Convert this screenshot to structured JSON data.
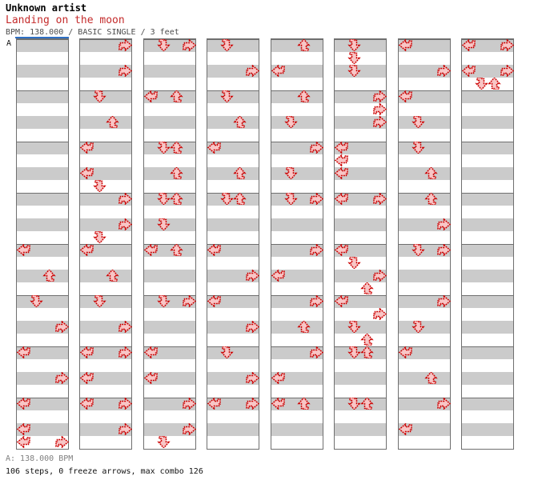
{
  "header": {
    "artist": "Unknown artist",
    "title": "Landing on the moon",
    "meta": "BPM: 138.000 / BASIC SINGLE / 3 feet"
  },
  "marker": {
    "label": "A",
    "line_color": "#2e6fc4"
  },
  "footer": {
    "bpm_line": "A: 138.000 BPM",
    "stats_line": "106 steps, 0 freeze arrows, max combo 126"
  },
  "colors": {
    "arrow_fill": "#f8c6c6",
    "arrow_stroke": "#cc0000",
    "stripe_gray": "#cbcbcb",
    "grid_border": "#6f6f6f",
    "title_red": "#c42b2b"
  },
  "chart_data": {
    "type": "step_chart",
    "game": "dance-single",
    "bpm": 138.0,
    "difficulty": "BASIC SINGLE",
    "feet": 3,
    "steps": 106,
    "freeze_arrows": 0,
    "max_combo": 126,
    "lanes": [
      "left",
      "down",
      "up",
      "right"
    ],
    "beats_per_column": 32,
    "beats_per_measure": 4,
    "columns": [
      {
        "notes": [
          [
            16,
            "left"
          ],
          [
            18,
            "up"
          ],
          [
            20,
            "down"
          ],
          [
            22,
            "right"
          ],
          [
            24,
            "left"
          ],
          [
            26,
            "right"
          ],
          [
            28,
            "left"
          ],
          [
            30,
            "left"
          ],
          [
            31,
            "left"
          ],
          [
            31,
            "right"
          ]
        ]
      },
      {
        "notes": [
          [
            0,
            "right"
          ],
          [
            2,
            "right"
          ],
          [
            4,
            "down"
          ],
          [
            6,
            "up"
          ],
          [
            8,
            "left"
          ],
          [
            10,
            "left"
          ],
          [
            11,
            "down"
          ],
          [
            12,
            "right"
          ],
          [
            14,
            "right"
          ],
          [
            15,
            "down"
          ],
          [
            16,
            "left"
          ],
          [
            18,
            "up"
          ],
          [
            20,
            "down"
          ],
          [
            22,
            "right"
          ],
          [
            24,
            "left"
          ],
          [
            24,
            "right"
          ],
          [
            26,
            "left"
          ],
          [
            28,
            "left"
          ],
          [
            28,
            "right"
          ],
          [
            30,
            "right"
          ]
        ]
      },
      {
        "notes": [
          [
            0,
            "down"
          ],
          [
            0,
            "right"
          ],
          [
            4,
            "left"
          ],
          [
            4,
            "up"
          ],
          [
            8,
            "down"
          ],
          [
            8,
            "up"
          ],
          [
            10,
            "up"
          ],
          [
            12,
            "down"
          ],
          [
            12,
            "up"
          ],
          [
            14,
            "down"
          ],
          [
            16,
            "left"
          ],
          [
            16,
            "up"
          ],
          [
            20,
            "down"
          ],
          [
            20,
            "right"
          ],
          [
            24,
            "left"
          ],
          [
            26,
            "left"
          ],
          [
            28,
            "right"
          ],
          [
            30,
            "right"
          ],
          [
            31,
            "down"
          ]
        ]
      },
      {
        "notes": [
          [
            0,
            "down"
          ],
          [
            2,
            "right"
          ],
          [
            4,
            "down"
          ],
          [
            6,
            "up"
          ],
          [
            8,
            "left"
          ],
          [
            10,
            "up"
          ],
          [
            12,
            "down"
          ],
          [
            12,
            "up"
          ],
          [
            16,
            "left"
          ],
          [
            18,
            "right"
          ],
          [
            20,
            "left"
          ],
          [
            22,
            "right"
          ],
          [
            24,
            "down"
          ],
          [
            26,
            "right"
          ],
          [
            28,
            "left"
          ],
          [
            28,
            "right"
          ]
        ]
      },
      {
        "notes": [
          [
            0,
            "up"
          ],
          [
            2,
            "left"
          ],
          [
            4,
            "up"
          ],
          [
            6,
            "down"
          ],
          [
            8,
            "right"
          ],
          [
            10,
            "down"
          ],
          [
            12,
            "down"
          ],
          [
            12,
            "right"
          ],
          [
            16,
            "right"
          ],
          [
            18,
            "left"
          ],
          [
            20,
            "right"
          ],
          [
            22,
            "up"
          ],
          [
            24,
            "right"
          ],
          [
            26,
            "left"
          ],
          [
            28,
            "left"
          ],
          [
            28,
            "up"
          ]
        ]
      },
      {
        "notes": [
          [
            0,
            "down"
          ],
          [
            1,
            "down"
          ],
          [
            2,
            "down"
          ],
          [
            4,
            "right"
          ],
          [
            5,
            "right"
          ],
          [
            6,
            "right"
          ],
          [
            8,
            "left"
          ],
          [
            9,
            "left"
          ],
          [
            10,
            "left"
          ],
          [
            12,
            "left"
          ],
          [
            12,
            "right"
          ],
          [
            16,
            "left"
          ],
          [
            17,
            "down"
          ],
          [
            18,
            "right"
          ],
          [
            19,
            "up"
          ],
          [
            20,
            "left"
          ],
          [
            21,
            "right"
          ],
          [
            22,
            "down"
          ],
          [
            23,
            "up"
          ],
          [
            24,
            "down"
          ],
          [
            24,
            "up"
          ],
          [
            28,
            "down"
          ],
          [
            28,
            "up"
          ]
        ]
      },
      {
        "notes": [
          [
            0,
            "left"
          ],
          [
            2,
            "right"
          ],
          [
            4,
            "left"
          ],
          [
            6,
            "down"
          ],
          [
            8,
            "down"
          ],
          [
            10,
            "up"
          ],
          [
            12,
            "up"
          ],
          [
            14,
            "right"
          ],
          [
            16,
            "down"
          ],
          [
            16,
            "right"
          ],
          [
            20,
            "right"
          ],
          [
            22,
            "down"
          ],
          [
            24,
            "left"
          ],
          [
            26,
            "up"
          ],
          [
            28,
            "right"
          ],
          [
            30,
            "left"
          ]
        ]
      },
      {
        "notes": [
          [
            0,
            "left"
          ],
          [
            0,
            "right"
          ],
          [
            2,
            "left"
          ],
          [
            2,
            "right"
          ],
          [
            3,
            "down"
          ],
          [
            3,
            "up"
          ]
        ]
      }
    ]
  }
}
